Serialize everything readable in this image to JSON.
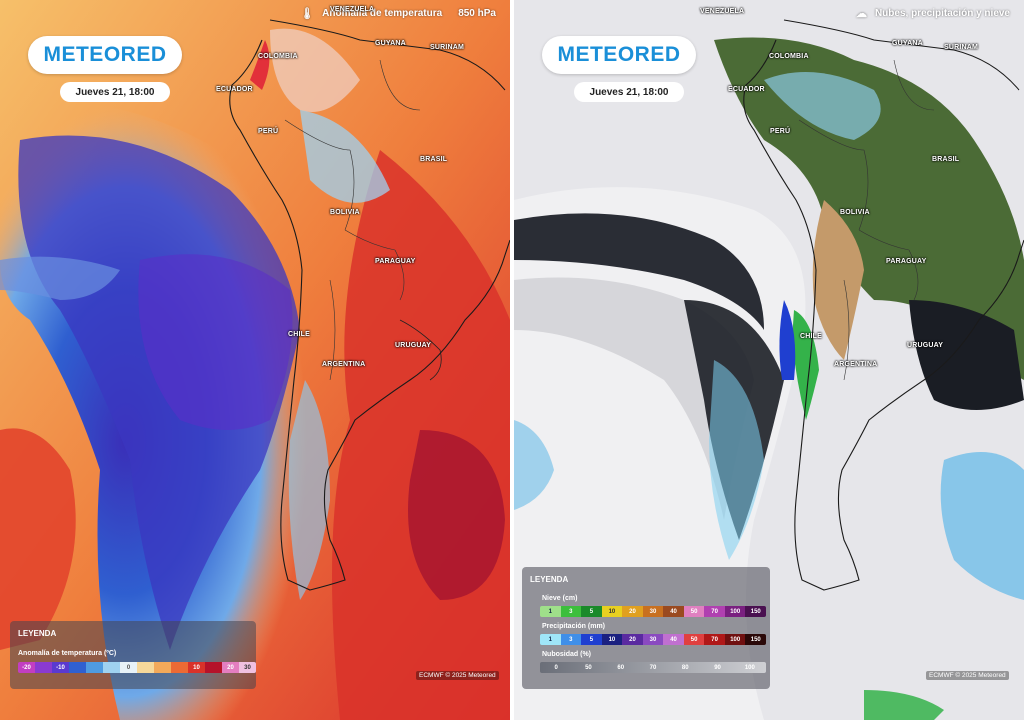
{
  "left_panel": {
    "header_title": "Anomalía de temperatura",
    "header_level": "850 hPa",
    "header_icon": "thermometer-icon",
    "logo_text": "METEORED",
    "date": "Jueves 21, 18:00",
    "countries": {
      "colombia": "COLOMBIA",
      "venezuela": "VENEZUELA",
      "guyana": "GUYANA",
      "surinam": "SURINAM",
      "ecuador": "ECUADOR",
      "peru": "PERÚ",
      "brasil": "BRASIL",
      "bolivia": "BOLIVIA",
      "paraguay": "PARAGUAY",
      "chile": "CHILE",
      "uruguay": "URUGUAY",
      "argentina": "ARGENTINA"
    },
    "legend": {
      "title": "LEYENDA",
      "subtitle": "Anomalía de temperatura (ºC)",
      "ticks": [
        "-20",
        "-10",
        "0",
        "10",
        "20",
        "30"
      ]
    },
    "credit": "ECMWF © 2025 Meteored"
  },
  "right_panel": {
    "header_title": "Nubes, precipitación y nieve",
    "header_icon": "cloud-icon",
    "logo_text": "METEORED",
    "date": "Jueves 21, 18:00",
    "countries": {
      "colombia": "COLOMBIA",
      "venezuela": "VENEZUELA",
      "guyana": "GUYANA",
      "surinam": "SURINAM",
      "ecuador": "ECUADOR",
      "peru": "PERÚ",
      "brasil": "BRASIL",
      "bolivia": "BOLIVIA",
      "paraguay": "PARAGUAY",
      "chile": "CHILE",
      "uruguay": "URUGUAY",
      "argentina": "ARGENTINA"
    },
    "legend": {
      "title": "LEYENDA",
      "snow_title": "Nieve (cm)",
      "snow_ticks": [
        "1",
        "3",
        "5",
        "10",
        "20",
        "30",
        "40",
        "50",
        "70",
        "100",
        "150"
      ],
      "rain_title": "Precipitación (mm)",
      "rain_ticks": [
        "1",
        "3",
        "5",
        "10",
        "20",
        "30",
        "40",
        "50",
        "70",
        "100",
        "150"
      ],
      "cloud_title": "Nubosidad (%)",
      "cloud_ticks": [
        "0",
        "50",
        "60",
        "70",
        "80",
        "90",
        "100"
      ]
    },
    "credit": "ECMWF © 2025 Meteored"
  },
  "colors": {
    "brand": "#1a8fd8",
    "cold_deep": "#3a3fb0",
    "cold": "#2b6fd6",
    "warm": "#e8432a",
    "hot": "#b5122a",
    "ocean_dark": "#1a1d24",
    "cloud": "#e8e8ea",
    "land_green": "#4c6b38",
    "land_desert": "#c8a070"
  }
}
